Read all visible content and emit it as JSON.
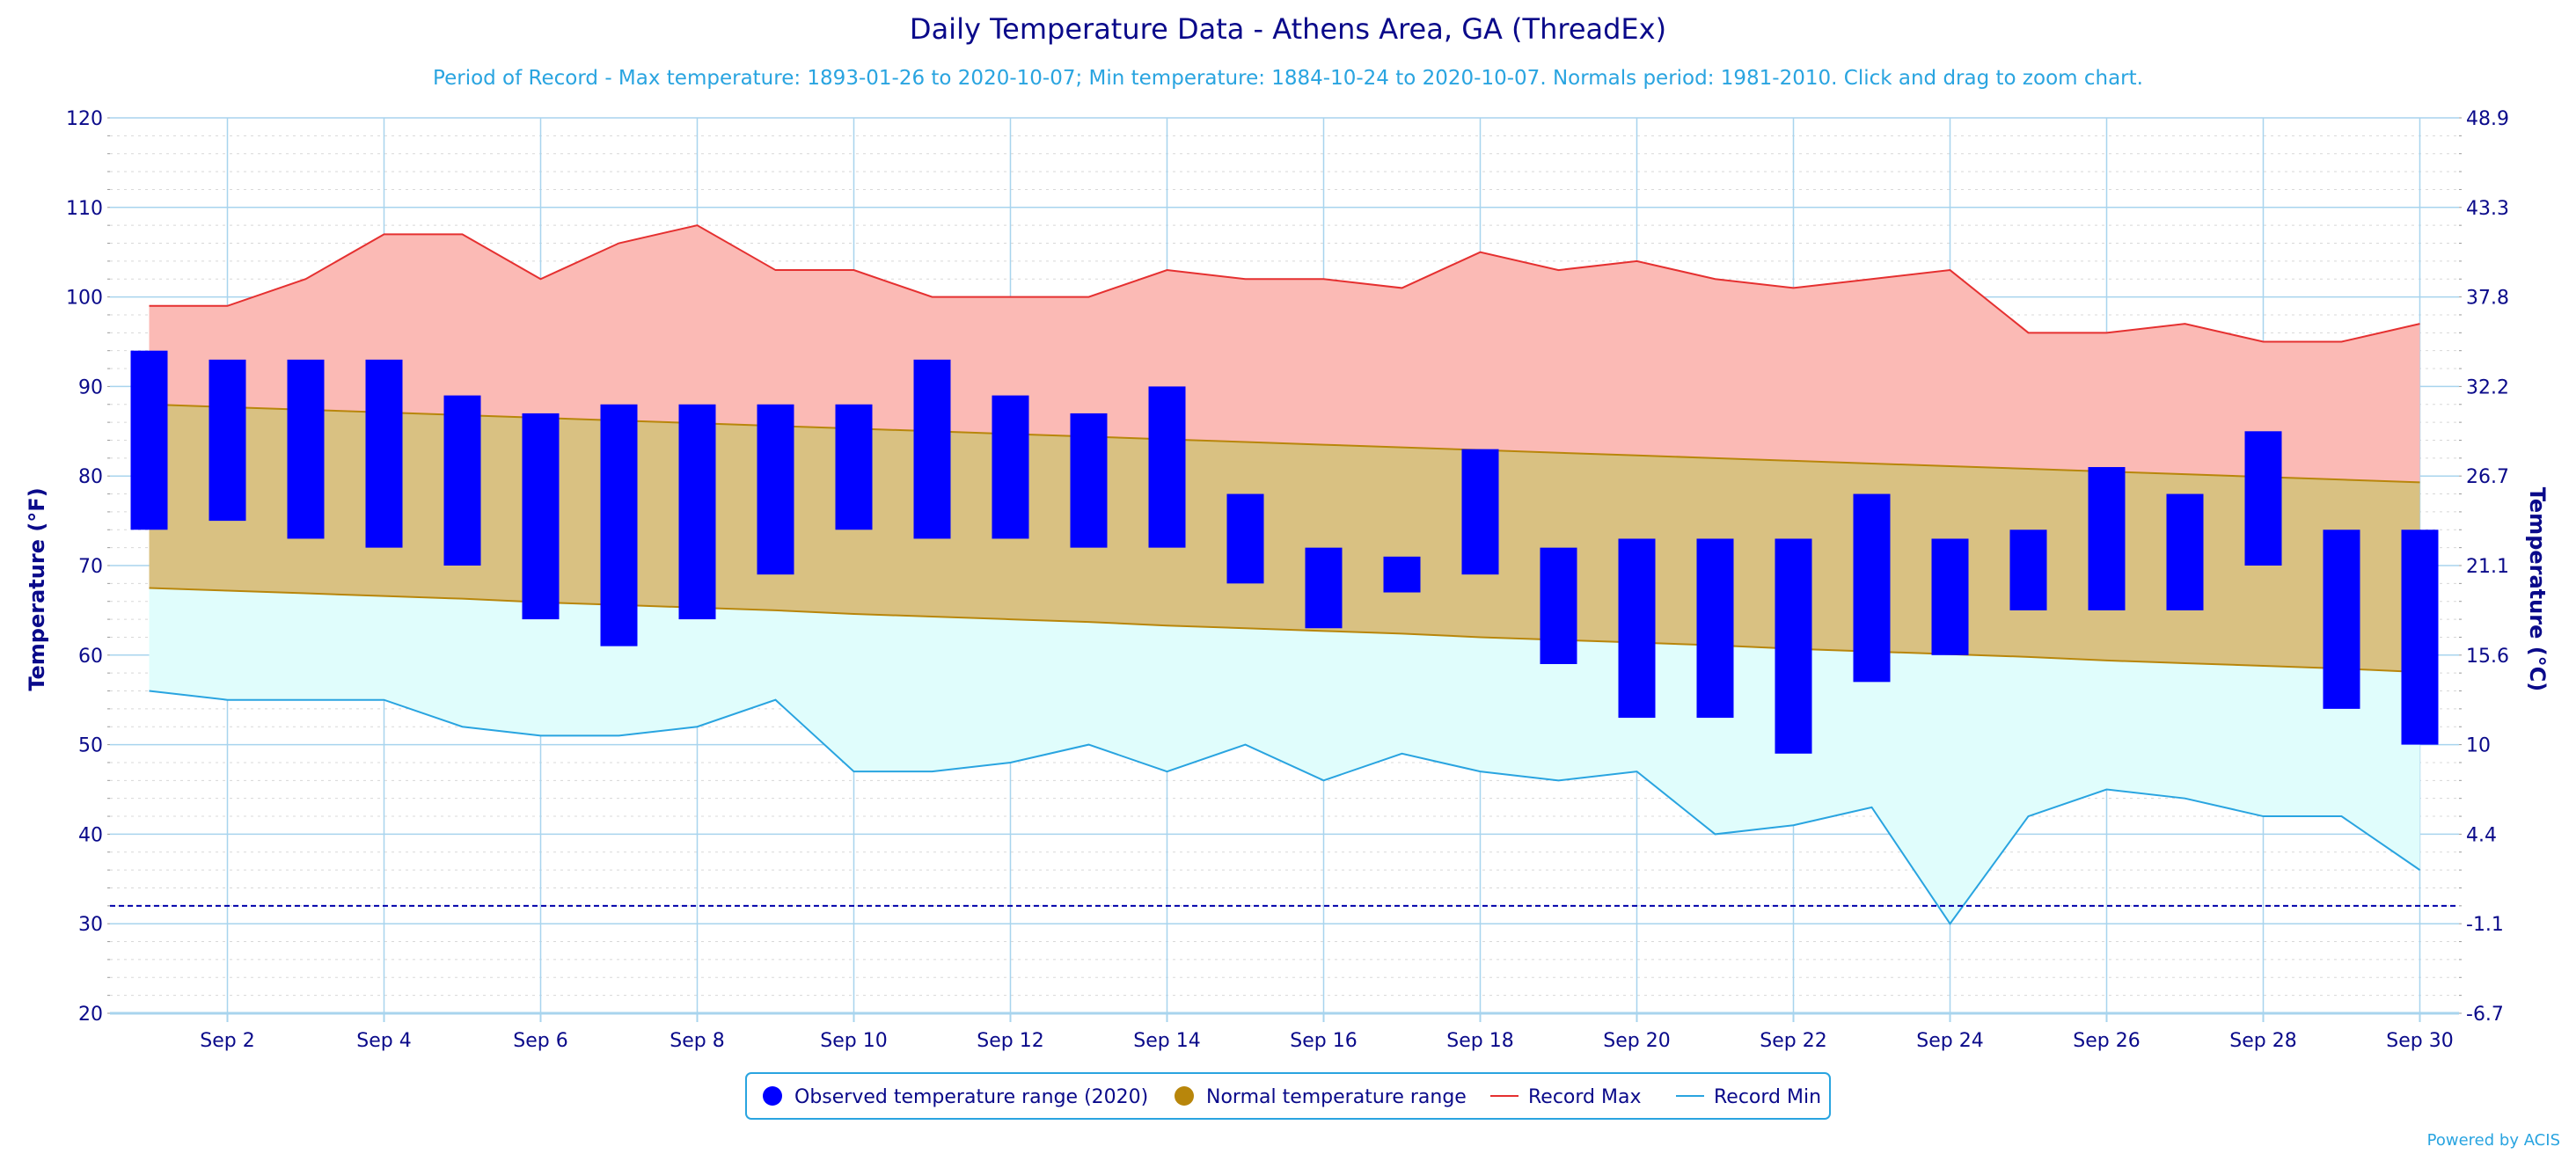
{
  "chart_data": {
    "type": "bar",
    "title": "Daily Temperature Data - Athens Area, GA (ThreadEx)",
    "subtitle": "Period of Record - Max temperature: 1893-01-26 to 2020-10-07; Min temperature: 1884-10-24 to 2020-10-07. Normals period: 1981-2010. Click and drag to zoom chart.",
    "ylabel": "Temperature (°F)",
    "y2label": "Temperature (°C)",
    "ylim": [
      20,
      120
    ],
    "yticks": [
      20,
      30,
      40,
      50,
      60,
      70,
      80,
      90,
      100,
      110,
      120
    ],
    "y2ticks": [
      "-6.7",
      "-1.1",
      "4.4",
      "10",
      "15.6",
      "21.1",
      "26.7",
      "32.2",
      "37.8",
      "43.3",
      "48.9"
    ],
    "x": [
      1,
      2,
      3,
      4,
      5,
      6,
      7,
      8,
      9,
      10,
      11,
      12,
      13,
      14,
      15,
      16,
      17,
      18,
      19,
      20,
      21,
      22,
      23,
      24,
      25,
      26,
      27,
      28,
      29,
      30
    ],
    "xtick_labels": [
      {
        "day": 2,
        "label": "Sep 2"
      },
      {
        "day": 4,
        "label": "Sep 4"
      },
      {
        "day": 6,
        "label": "Sep 6"
      },
      {
        "day": 8,
        "label": "Sep 8"
      },
      {
        "day": 10,
        "label": "Sep 10"
      },
      {
        "day": 12,
        "label": "Sep 12"
      },
      {
        "day": 14,
        "label": "Sep 14"
      },
      {
        "day": 16,
        "label": "Sep 16"
      },
      {
        "day": 18,
        "label": "Sep 18"
      },
      {
        "day": 20,
        "label": "Sep 20"
      },
      {
        "day": 22,
        "label": "Sep 22"
      },
      {
        "day": 24,
        "label": "Sep 24"
      },
      {
        "day": 26,
        "label": "Sep 26"
      },
      {
        "day": 28,
        "label": "Sep 28"
      },
      {
        "day": 30,
        "label": "Sep 30"
      }
    ],
    "freezing_line": 32,
    "series": [
      {
        "name": "Observed temperature range (2020)",
        "color": "#0000ff",
        "high": [
          94,
          93,
          93,
          93,
          89,
          87,
          88,
          88,
          88,
          88,
          93,
          89,
          87,
          90,
          78,
          72,
          71,
          83,
          72,
          73,
          73,
          73,
          78,
          73,
          74,
          81,
          78,
          85,
          74,
          74
        ],
        "low": [
          74,
          75,
          73,
          72,
          70,
          64,
          61,
          64,
          69,
          74,
          73,
          73,
          72,
          72,
          68,
          63,
          67,
          69,
          59,
          53,
          53,
          49,
          57,
          60,
          65,
          65,
          65,
          70,
          54,
          50
        ]
      },
      {
        "name": "Normal temperature range",
        "color": "#b8860b",
        "high": [
          88,
          87.7,
          87.4,
          87.1,
          86.8,
          86.5,
          86.2,
          85.9,
          85.6,
          85.3,
          85,
          84.7,
          84.4,
          84.1,
          83.8,
          83.5,
          83.2,
          82.9,
          82.6,
          82.3,
          82,
          81.7,
          81.4,
          81.1,
          80.8,
          80.5,
          80.2,
          79.9,
          79.6,
          79.3
        ],
        "low": [
          67.5,
          67.2,
          66.9,
          66.6,
          66.3,
          65.9,
          65.6,
          65.3,
          65,
          64.6,
          64.3,
          64,
          63.7,
          63.3,
          63,
          62.7,
          62.4,
          62,
          61.7,
          61.4,
          61.1,
          60.7,
          60.4,
          60.1,
          59.8,
          59.4,
          59.1,
          58.8,
          58.5,
          58.1
        ]
      },
      {
        "name": "Record Max",
        "color": "#e53030",
        "values": [
          99,
          99,
          102,
          107,
          107,
          102,
          106,
          108,
          103,
          103,
          100,
          100,
          100,
          103,
          102,
          102,
          101,
          105,
          103,
          104,
          102,
          101,
          102,
          103,
          96,
          96,
          97,
          95,
          95,
          97
        ]
      },
      {
        "name": "Record Min",
        "color": "#29a4e0",
        "values": [
          56,
          55,
          55,
          55,
          52,
          51,
          51,
          52,
          55,
          47,
          47,
          48,
          50,
          47,
          50,
          46,
          49,
          47,
          46,
          47,
          40,
          41,
          43,
          30,
          42,
          45,
          44,
          42,
          42,
          36
        ]
      }
    ],
    "colors": {
      "record_band": "#fbbab5",
      "normal_band": "#d9c182",
      "below_normal_band": "#e0fdfc",
      "gridline": "#a8d4ee",
      "axis_text": "#0a0a8a",
      "freezing_line": "#0000aa"
    },
    "legend": {
      "placement": "bottom-center",
      "items": [
        "Observed temperature range (2020)",
        "Normal temperature range",
        "Record Max",
        "Record Min"
      ]
    },
    "credit": "Powered by ACIS"
  }
}
